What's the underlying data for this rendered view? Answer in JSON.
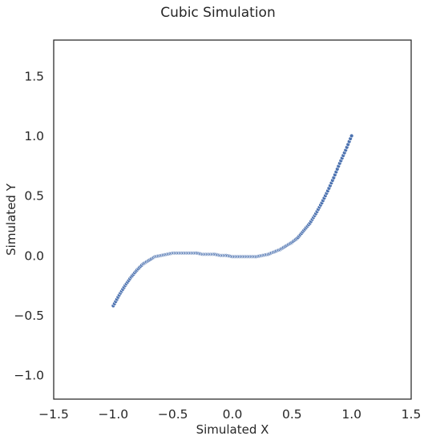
{
  "chart_data": {
    "type": "scatter",
    "title": "Cubic Simulation",
    "xlabel": "Simulated X",
    "ylabel": "Simulated Y",
    "xlim": [
      -1.5,
      1.5
    ],
    "ylim": [
      -1.2,
      1.8
    ],
    "x_ticks": [
      -1.5,
      -1.0,
      -0.5,
      0.0,
      0.5,
      1.0,
      1.5
    ],
    "x_tick_labels": [
      "−1.5",
      "−1.0",
      "−0.5",
      "0.0",
      "0.5",
      "1.0",
      "1.5"
    ],
    "y_ticks": [
      -1.0,
      -0.5,
      0.0,
      0.5,
      1.0,
      1.5
    ],
    "y_tick_labels": [
      "−1.0",
      "−0.5",
      "0.0",
      "0.5",
      "1.0",
      "1.5"
    ],
    "grid": false,
    "marker_color": "#4c72b0",
    "marker_edge_color": "#ffffff",
    "x": [
      -1.0,
      -0.95,
      -0.9,
      -0.85,
      -0.8,
      -0.75,
      -0.7,
      -0.65,
      -0.6,
      -0.55,
      -0.5,
      -0.45,
      -0.4,
      -0.35,
      -0.3,
      -0.25,
      -0.2,
      -0.15,
      -0.1,
      -0.05,
      0.0,
      0.05,
      0.1,
      0.15,
      0.2,
      0.25,
      0.3,
      0.35,
      0.4,
      0.45,
      0.5,
      0.55,
      0.6,
      0.65,
      0.7,
      0.75,
      0.8,
      0.85,
      0.9,
      0.95,
      1.0
    ],
    "y": [
      -0.42,
      -0.33,
      -0.25,
      -0.18,
      -0.12,
      -0.07,
      -0.04,
      -0.01,
      0.0,
      0.01,
      0.02,
      0.02,
      0.02,
      0.02,
      0.02,
      0.01,
      0.01,
      0.01,
      0.0,
      0.0,
      -0.01,
      -0.01,
      -0.01,
      -0.01,
      -0.01,
      0.0,
      0.01,
      0.03,
      0.05,
      0.08,
      0.11,
      0.15,
      0.21,
      0.27,
      0.35,
      0.44,
      0.54,
      0.65,
      0.77,
      0.88,
      1.0
    ]
  }
}
